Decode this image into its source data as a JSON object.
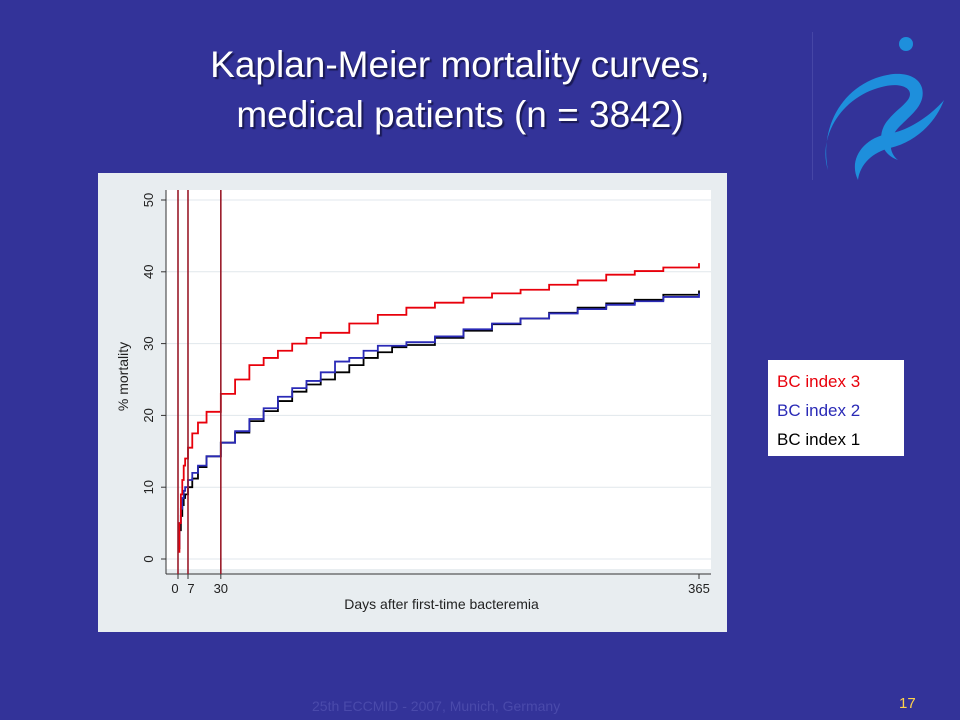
{
  "slide": {
    "title_line1": "Kaplan-Meier mortality curves,",
    "title_line2": "medical patients (n = 3842)",
    "footer": "25th ECCMID - 2007, Munich, Germany",
    "page_number": "17",
    "logo_icon": "eccmid-swirl-logo-icon",
    "colors": {
      "background": "#333399",
      "title": "#ffffff",
      "page_number": "#ffd24a",
      "logo": "#1e8fdc",
      "reference_lines": "#9a1b2a"
    }
  },
  "legend": {
    "items": [
      {
        "label": "BC index 3",
        "color": "#e8000b"
      },
      {
        "label": "BC index 2",
        "color": "#2a2ab6"
      },
      {
        "label": "BC index 1",
        "color": "#000000"
      }
    ]
  },
  "chart_data": {
    "type": "line",
    "title": "",
    "xlabel": "Days after first-time bacteremia",
    "ylabel": "% mortality",
    "xlim": [
      0,
      365
    ],
    "ylim": [
      0,
      50
    ],
    "x_ticks": [
      {
        "value": 0,
        "label": "0"
      },
      {
        "value": 7,
        "label": "7"
      },
      {
        "value": 30,
        "label": "30"
      },
      {
        "value": 365,
        "label": "365"
      }
    ],
    "y_ticks": [
      0,
      10,
      20,
      30,
      40,
      50
    ],
    "grid": "horizontal",
    "reference_lines_x": [
      0,
      7,
      30
    ],
    "step": true,
    "series": [
      {
        "name": "BC index 3",
        "color": "#e8000b",
        "points": [
          [
            0,
            1
          ],
          [
            1,
            5
          ],
          [
            2,
            9
          ],
          [
            3,
            11
          ],
          [
            4,
            13
          ],
          [
            5,
            14
          ],
          [
            7,
            15.5
          ],
          [
            10,
            17.5
          ],
          [
            14,
            19
          ],
          [
            20,
            20.5
          ],
          [
            30,
            23
          ],
          [
            40,
            25
          ],
          [
            50,
            27
          ],
          [
            60,
            28
          ],
          [
            70,
            29
          ],
          [
            80,
            30
          ],
          [
            90,
            30.8
          ],
          [
            100,
            31.5
          ],
          [
            120,
            32.8
          ],
          [
            140,
            34
          ],
          [
            160,
            35
          ],
          [
            180,
            35.7
          ],
          [
            200,
            36.4
          ],
          [
            220,
            37
          ],
          [
            240,
            37.5
          ],
          [
            260,
            38.2
          ],
          [
            280,
            38.8
          ],
          [
            300,
            39.6
          ],
          [
            320,
            40.1
          ],
          [
            340,
            40.6
          ],
          [
            365,
            41.2
          ]
        ]
      },
      {
        "name": "BC index 2",
        "color": "#2a2ab6",
        "points": [
          [
            0,
            2
          ],
          [
            1,
            5
          ],
          [
            2,
            7
          ],
          [
            3,
            8.5
          ],
          [
            4,
            9.5
          ],
          [
            5,
            10
          ],
          [
            7,
            11
          ],
          [
            10,
            12
          ],
          [
            14,
            13
          ],
          [
            20,
            14.3
          ],
          [
            30,
            16.2
          ],
          [
            40,
            17.8
          ],
          [
            50,
            19.5
          ],
          [
            60,
            21
          ],
          [
            70,
            22.6
          ],
          [
            80,
            23.8
          ],
          [
            90,
            24.8
          ],
          [
            100,
            26
          ],
          [
            110,
            27.5
          ],
          [
            120,
            28
          ],
          [
            130,
            29
          ],
          [
            140,
            29.7
          ],
          [
            160,
            30.2
          ],
          [
            180,
            31
          ],
          [
            200,
            32
          ],
          [
            220,
            32.8
          ],
          [
            240,
            33.5
          ],
          [
            260,
            34.2
          ],
          [
            280,
            34.8
          ],
          [
            300,
            35.4
          ],
          [
            320,
            35.9
          ],
          [
            340,
            36.5
          ],
          [
            365,
            37
          ]
        ]
      },
      {
        "name": "BC index 1",
        "color": "#000000",
        "points": [
          [
            0,
            1.5
          ],
          [
            1,
            4
          ],
          [
            2,
            6
          ],
          [
            3,
            7.5
          ],
          [
            4,
            8.5
          ],
          [
            5,
            9
          ],
          [
            7,
            10
          ],
          [
            10,
            11.2
          ],
          [
            14,
            12.8
          ],
          [
            20,
            14.3
          ],
          [
            30,
            16.2
          ],
          [
            40,
            17.6
          ],
          [
            50,
            19.2
          ],
          [
            60,
            20.6
          ],
          [
            70,
            22
          ],
          [
            80,
            23.3
          ],
          [
            90,
            24.3
          ],
          [
            100,
            25
          ],
          [
            110,
            26
          ],
          [
            120,
            27
          ],
          [
            130,
            28
          ],
          [
            140,
            28.8
          ],
          [
            150,
            29.5
          ],
          [
            160,
            29.8
          ],
          [
            180,
            30.8
          ],
          [
            200,
            31.8
          ],
          [
            220,
            32.7
          ],
          [
            240,
            33.5
          ],
          [
            260,
            34.3
          ],
          [
            280,
            35
          ],
          [
            300,
            35.6
          ],
          [
            320,
            36.1
          ],
          [
            340,
            36.8
          ],
          [
            365,
            37.4
          ]
        ]
      }
    ]
  }
}
